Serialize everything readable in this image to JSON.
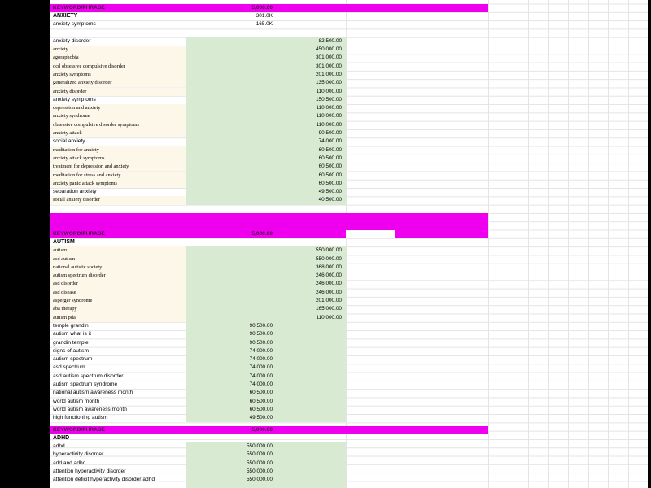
{
  "colors": {
    "header_bg": "#ee00ee",
    "header_text": "#47093f",
    "highlight_bg": "#d9ead3",
    "alt_row_bg": "#fdf7ea"
  },
  "sheet": {
    "sections": [
      {
        "header": {
          "label": "KEYWORD/PHRASE",
          "value": "5,000.00"
        },
        "title": "ANXIETY",
        "title_value": "301.0K",
        "subtitle": "anxiety symptoms",
        "subtitle_value": "165.0K",
        "rows": [
          {
            "keyword": "anxiety disorder",
            "value": "82,500.00",
            "value_col": "C",
            "styled": false
          },
          {
            "keyword": "anxiety",
            "value": "450,000.00",
            "value_col": "C",
            "styled": true
          },
          {
            "keyword": "agoraphobia",
            "value": "301,000.00",
            "value_col": "C",
            "styled": true
          },
          {
            "keyword": "ocd obsessive compulsive disorder",
            "value": "301,000.00",
            "value_col": "C",
            "styled": true
          },
          {
            "keyword": "anxiety symptoms",
            "value": "201,000.00",
            "value_col": "C",
            "styled": true
          },
          {
            "keyword": "generalized anxiety disorder",
            "value": "135,000.00",
            "value_col": "C",
            "styled": true
          },
          {
            "keyword": "anxiety disorder",
            "value": "110,000.00",
            "value_col": "C",
            "styled": true
          },
          {
            "keyword": "anxiety symptoms",
            "value": "150,500.00",
            "value_col": "C",
            "styled": false
          },
          {
            "keyword": "depression and anxiety",
            "value": "110,000.00",
            "value_col": "C",
            "styled": true
          },
          {
            "keyword": "anxiety syndrome",
            "value": "110,000.00",
            "value_col": "C",
            "styled": true
          },
          {
            "keyword": "obsessive compulsive disorder symptoms",
            "value": "110,000.00",
            "value_col": "C",
            "styled": true
          },
          {
            "keyword": "anxiety attack",
            "value": "90,500.00",
            "value_col": "C",
            "styled": true
          },
          {
            "keyword": "social anxiety",
            "value": "74,000.00",
            "value_col": "C",
            "styled": false
          },
          {
            "keyword": "meditation for anxiety",
            "value": "60,500.00",
            "value_col": "C",
            "styled": true
          },
          {
            "keyword": "anxiety attack symptoms",
            "value": "60,500.00",
            "value_col": "C",
            "styled": true
          },
          {
            "keyword": "treatment for depression and anxiety",
            "value": "60,500.00",
            "value_col": "C",
            "styled": true
          },
          {
            "keyword": "meditation for stress and anxiety",
            "value": "60,500.00",
            "value_col": "C",
            "styled": true
          },
          {
            "keyword": "anxiety panic attack symptoms",
            "value": "60,500.00",
            "value_col": "C",
            "styled": true
          },
          {
            "keyword": "separation anxiety",
            "value": "49,500.00",
            "value_col": "C",
            "styled": false
          },
          {
            "keyword": "social anxiety disorder",
            "value": "40,500.00",
            "value_col": "C",
            "styled": true
          }
        ]
      },
      {
        "header": {
          "label": "KEYWORD/PHRASE",
          "value": "5,000.00"
        },
        "title": "AUTISM",
        "rows": [
          {
            "keyword": "autism",
            "value": "550,000.00",
            "value_col": "C",
            "styled": true
          },
          {
            "keyword": "asd autism",
            "value": "550,000.00",
            "value_col": "C",
            "styled": true
          },
          {
            "keyword": "national autistic society",
            "value": "368,000.00",
            "value_col": "C",
            "styled": true
          },
          {
            "keyword": "autism spectrum disorder",
            "value": "246,000.00",
            "value_col": "C",
            "styled": true
          },
          {
            "keyword": "asd disorder",
            "value": "246,000.00",
            "value_col": "C",
            "styled": true
          },
          {
            "keyword": "asd disease",
            "value": "246,000.00",
            "value_col": "C",
            "styled": true
          },
          {
            "keyword": "asperger syndrome",
            "value": "201,000.00",
            "value_col": "C",
            "styled": true
          },
          {
            "keyword": "aba therapy",
            "value": "165,000.00",
            "value_col": "C",
            "styled": true
          },
          {
            "keyword": "autism pda",
            "value": "110,000.00",
            "value_col": "C",
            "styled": true
          },
          {
            "keyword": "temple grandin",
            "value": "90,500.00",
            "value_col": "B",
            "styled": false
          },
          {
            "keyword": "autism what is it",
            "value": "90,500.00",
            "value_col": "B",
            "styled": false
          },
          {
            "keyword": "grandin temple",
            "value": "90,500.00",
            "value_col": "B",
            "styled": false
          },
          {
            "keyword": "signs of autism",
            "value": "74,000.00",
            "value_col": "B",
            "styled": false
          },
          {
            "keyword": "autism spectrum",
            "value": "74,000.00",
            "value_col": "B",
            "styled": false
          },
          {
            "keyword": "asd spectrum",
            "value": "74,000.00",
            "value_col": "B",
            "styled": false
          },
          {
            "keyword": "asd autism spectrum disorder",
            "value": "74,000.00",
            "value_col": "B",
            "styled": false
          },
          {
            "keyword": "autism spectrum syndrome",
            "value": "74,000.00",
            "value_col": "B",
            "styled": false
          },
          {
            "keyword": "national autism awareness month",
            "value": "60,500.00",
            "value_col": "B",
            "styled": false
          },
          {
            "keyword": "world autism month",
            "value": "60,500.00",
            "value_col": "B",
            "styled": false
          },
          {
            "keyword": "world autism awareness month",
            "value": "60,500.00",
            "value_col": "B",
            "styled": false
          },
          {
            "keyword": "high functioning autism",
            "value": "49,500.00",
            "value_col": "B",
            "styled": false
          }
        ]
      },
      {
        "header": {
          "label": "KEYWORD/PHRASE",
          "value": "5,000.00"
        },
        "title": "ADHD",
        "rows": [
          {
            "keyword": "adhd",
            "value": "550,000.00",
            "value_col": "B",
            "styled": false
          },
          {
            "keyword": "hyperactivity disorder",
            "value": "550,000.00",
            "value_col": "B",
            "styled": false
          },
          {
            "keyword": "add and adhd",
            "value": "550,000.00",
            "value_col": "B",
            "styled": false
          },
          {
            "keyword": "attention hyperactivity disorder",
            "value": "550,000.00",
            "value_col": "B",
            "styled": false
          },
          {
            "keyword": "attention deficit hyperactivity disorder adhd",
            "value": "550,000.00",
            "value_col": "B",
            "styled": false
          }
        ]
      }
    ]
  }
}
